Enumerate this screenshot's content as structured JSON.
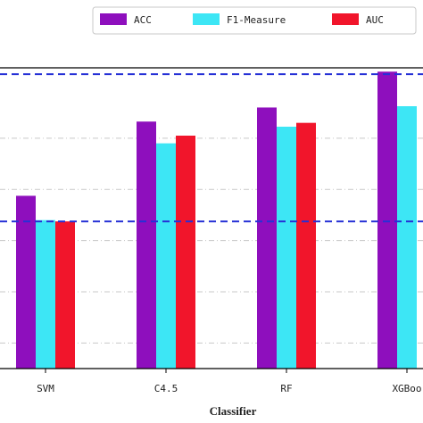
{
  "chart_data": {
    "type": "bar",
    "categories": [
      "SVM",
      "C4.5",
      "RF",
      "XGBoo"
    ],
    "series": [
      {
        "name": "ACC",
        "color": "#8e0fbd",
        "values": [
          0.835,
          0.893,
          0.904,
          0.932
        ]
      },
      {
        "name": "F1-Measure",
        "color": "#3de6f5",
        "values": [
          0.816,
          0.876,
          0.889,
          0.905
        ]
      },
      {
        "name": "AUC",
        "color": "#f1152b",
        "values": [
          0.815,
          0.882,
          0.892,
          null
        ]
      }
    ],
    "reference_lines": [
      0.93,
      0.815
    ],
    "reference_line_color": "#2630d6",
    "xlabel": "Classifier",
    "ylabel": "",
    "ylim": [
      0.7,
      0.935
    ],
    "grid": true,
    "legend": "top"
  }
}
